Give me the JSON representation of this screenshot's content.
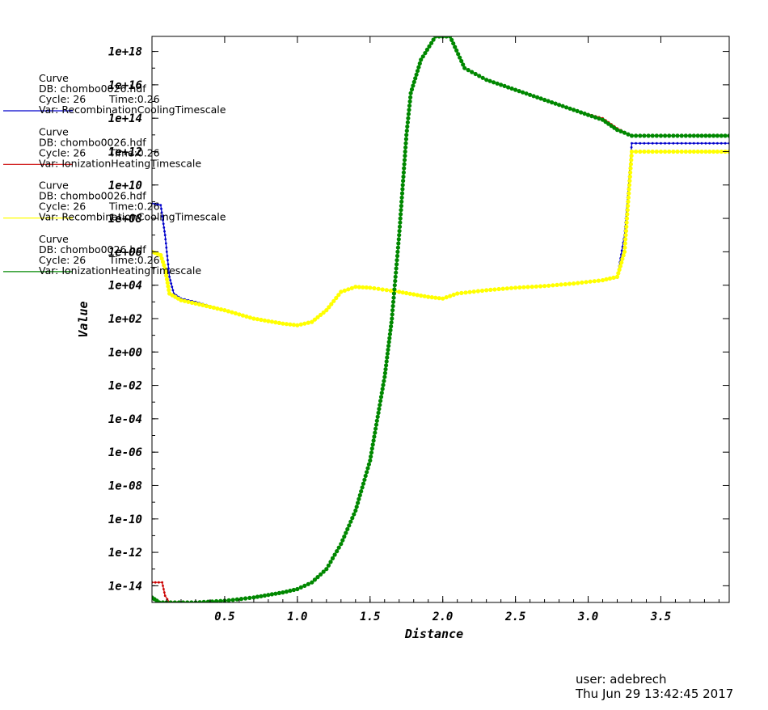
{
  "chart_data": {
    "type": "line",
    "title": "",
    "xlabel": "Distance",
    "ylabel": "Value",
    "xlim": [
      0.0,
      3.97
    ],
    "ylim_log10": [
      -15.0,
      18.9
    ],
    "y_scale": "log",
    "x_ticks": [
      "0.5",
      "1.0",
      "1.5",
      "2.0",
      "2.5",
      "3.0",
      "3.5"
    ],
    "x_tick_values": [
      0.5,
      1.0,
      1.5,
      2.0,
      2.5,
      3.0,
      3.5
    ],
    "y_ticks": [
      "1e-14",
      "1e-12",
      "1e-10",
      "1e-08",
      "1e-06",
      "1e-04",
      "1e-02",
      "1e+00",
      "1e+02",
      "1e+04",
      "1e+06",
      "1e+08",
      "1e+10",
      "1e+12",
      "1e+14",
      "1e+16",
      "1e+18"
    ],
    "y_tick_values_log10": [
      -14,
      -12,
      -10,
      -8,
      -6,
      -4,
      -2,
      0,
      2,
      4,
      6,
      8,
      10,
      12,
      14,
      16,
      18
    ],
    "grid": false,
    "legend_position": "left, overlapping plot",
    "series": [
      {
        "color": "#0000cc",
        "points_log10": [
          [
            0.0,
            8.9
          ],
          [
            0.06,
            8.8
          ],
          [
            0.09,
            7.0
          ],
          [
            0.12,
            4.5
          ],
          [
            0.15,
            3.5
          ],
          [
            0.2,
            3.2
          ],
          [
            0.3,
            3.0
          ],
          [
            0.5,
            2.5
          ],
          [
            0.7,
            2.0
          ],
          [
            0.9,
            1.7
          ],
          [
            1.0,
            1.6
          ],
          [
            1.1,
            1.8
          ],
          [
            1.2,
            2.5
          ],
          [
            1.3,
            3.6
          ],
          [
            1.4,
            3.9
          ],
          [
            1.5,
            3.85
          ],
          [
            1.7,
            3.6
          ],
          [
            1.9,
            3.3
          ],
          [
            2.0,
            3.2
          ],
          [
            2.1,
            3.5
          ],
          [
            2.3,
            3.7
          ],
          [
            2.5,
            3.85
          ],
          [
            2.7,
            3.95
          ],
          [
            2.9,
            4.1
          ],
          [
            3.1,
            4.3
          ],
          [
            3.2,
            4.45
          ],
          [
            3.25,
            7.0
          ],
          [
            3.3,
            12.5
          ],
          [
            3.5,
            12.5
          ],
          [
            3.7,
            12.5
          ],
          [
            3.97,
            12.5
          ]
        ]
      },
      {
        "color": "#cc0000",
        "points_log10": [
          [
            0.0,
            -13.8
          ],
          [
            0.07,
            -13.8
          ],
          [
            0.09,
            -14.6
          ],
          [
            0.12,
            -15.0
          ],
          [
            0.3,
            -15.0
          ],
          [
            0.5,
            -14.9
          ],
          [
            0.7,
            -14.7
          ],
          [
            0.9,
            -14.4
          ],
          [
            1.0,
            -14.2
          ],
          [
            1.1,
            -13.8
          ],
          [
            1.2,
            -13.0
          ],
          [
            1.3,
            -11.5
          ],
          [
            1.4,
            -9.5
          ],
          [
            1.5,
            -6.5
          ],
          [
            1.6,
            -1.5
          ],
          [
            1.65,
            2.0
          ],
          [
            1.7,
            7.0
          ],
          [
            1.75,
            13.0
          ],
          [
            1.78,
            15.5
          ],
          [
            1.85,
            17.5
          ],
          [
            1.95,
            18.9
          ],
          [
            2.05,
            18.9
          ],
          [
            2.15,
            17.0
          ],
          [
            2.3,
            16.3
          ],
          [
            2.5,
            15.7
          ],
          [
            2.7,
            15.1
          ],
          [
            2.9,
            14.5
          ],
          [
            3.1,
            14.0
          ],
          [
            3.2,
            13.4
          ],
          [
            3.3,
            12.95
          ],
          [
            3.5,
            12.95
          ],
          [
            3.7,
            12.95
          ],
          [
            3.97,
            12.95
          ]
        ]
      },
      {
        "color": "#ffff00",
        "points_log10": [
          [
            0.0,
            6.0
          ],
          [
            0.06,
            5.8
          ],
          [
            0.09,
            5.0
          ],
          [
            0.12,
            3.5
          ],
          [
            0.2,
            3.1
          ],
          [
            0.3,
            2.9
          ],
          [
            0.5,
            2.5
          ],
          [
            0.7,
            2.0
          ],
          [
            0.9,
            1.7
          ],
          [
            1.0,
            1.6
          ],
          [
            1.1,
            1.8
          ],
          [
            1.2,
            2.5
          ],
          [
            1.3,
            3.6
          ],
          [
            1.4,
            3.9
          ],
          [
            1.5,
            3.85
          ],
          [
            1.7,
            3.6
          ],
          [
            1.9,
            3.3
          ],
          [
            2.0,
            3.2
          ],
          [
            2.1,
            3.5
          ],
          [
            2.3,
            3.7
          ],
          [
            2.5,
            3.85
          ],
          [
            2.7,
            3.95
          ],
          [
            2.9,
            4.1
          ],
          [
            3.1,
            4.3
          ],
          [
            3.2,
            4.5
          ],
          [
            3.25,
            6.0
          ],
          [
            3.3,
            12.0
          ],
          [
            3.5,
            12.0
          ],
          [
            3.7,
            12.0
          ],
          [
            3.97,
            12.0
          ]
        ]
      },
      {
        "color": "#008800",
        "points_log10": [
          [
            0.0,
            -14.7
          ],
          [
            0.05,
            -15.0
          ],
          [
            0.1,
            -15.0
          ],
          [
            0.3,
            -15.0
          ],
          [
            0.5,
            -14.9
          ],
          [
            0.7,
            -14.7
          ],
          [
            0.9,
            -14.4
          ],
          [
            1.0,
            -14.2
          ],
          [
            1.1,
            -13.8
          ],
          [
            1.2,
            -13.0
          ],
          [
            1.3,
            -11.5
          ],
          [
            1.4,
            -9.5
          ],
          [
            1.5,
            -6.5
          ],
          [
            1.6,
            -1.5
          ],
          [
            1.65,
            2.0
          ],
          [
            1.7,
            7.0
          ],
          [
            1.75,
            13.0
          ],
          [
            1.78,
            15.5
          ],
          [
            1.85,
            17.5
          ],
          [
            1.95,
            18.9
          ],
          [
            2.05,
            18.9
          ],
          [
            2.15,
            17.0
          ],
          [
            2.3,
            16.3
          ],
          [
            2.5,
            15.7
          ],
          [
            2.7,
            15.1
          ],
          [
            2.9,
            14.5
          ],
          [
            3.1,
            13.9
          ],
          [
            3.2,
            13.3
          ],
          [
            3.3,
            12.95
          ],
          [
            3.5,
            12.95
          ],
          [
            3.7,
            12.95
          ],
          [
            3.97,
            12.95
          ]
        ]
      }
    ]
  },
  "legend": [
    {
      "label": "Curve",
      "db": "DB: chombo0026.hdf",
      "cycle": "Cycle: 26",
      "time": "Time:0.26",
      "var": "Var: RecombinationCoolingTimescale",
      "color": "#0000cc"
    },
    {
      "label": "Curve",
      "db": "DB: chombo0026.hdf",
      "cycle": "Cycle: 26",
      "time": "Time:0.26",
      "var": "Var: IonizationHeatingTimescale",
      "color": "#cc0000"
    },
    {
      "label": "Curve",
      "db": "DB: chombo0026.hdf",
      "cycle": "Cycle: 26",
      "time": "Time:0.26",
      "var": "Var: RecombinationCoolingTimescale",
      "color": "#ffff00"
    },
    {
      "label": "Curve",
      "db": "DB: chombo0026.hdf",
      "cycle": "Cycle: 26",
      "time": "Time:0.26",
      "var": "Var: IonizationHeatingTimescale",
      "color": "#008800"
    }
  ],
  "footer": {
    "user": "user: adebrech",
    "date": "Thu Jun 29 13:42:45 2017"
  }
}
